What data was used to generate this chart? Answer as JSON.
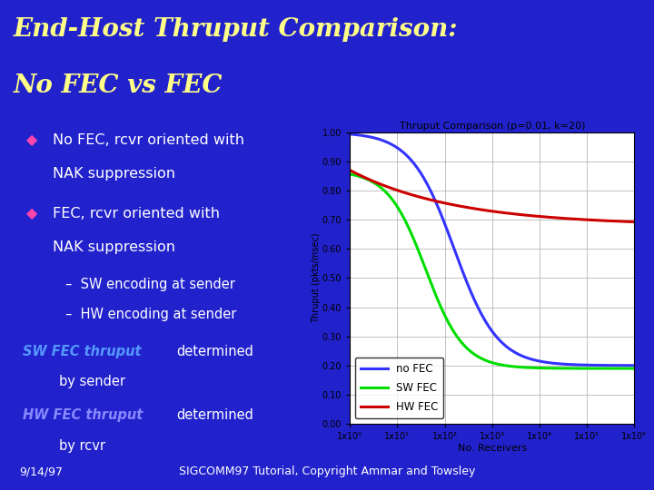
{
  "title_line1": "End-Host Thruput Comparison:",
  "title_line2": "No FEC vs FEC",
  "title_color": "#FFFF88",
  "bg_color": "#2222CC",
  "separator_color": "#FF44AA",
  "bullet_color": "#FF44AA",
  "sw_text_color": "#5599FF",
  "hw_text_color": "#8888FF",
  "white_text": "#FFFFFF",
  "footer_left": "9/14/97",
  "footer_center": "SIGCOMM97 Tutorial, Copyright Ammar and Towsley",
  "chart_title": "Thruput Comparison (p=0.01, k=20)",
  "chart_xlabel": "No. Receivers",
  "chart_ylabel": "Thruput (pkts/msec)",
  "chart_ytick_labels": [
    "0.00",
    "0.10",
    "0.20",
    "0.30",
    "0.40",
    "0.50",
    "0.60",
    "0.70",
    "0.80",
    "0.90",
    "1.00"
  ],
  "chart_xtick_labels": [
    "1x10⁰",
    "1x10¹",
    "1x10²",
    "1x10³",
    "1x10⁴",
    "1x10⁵",
    "1x10⁶"
  ],
  "no_fec_color": "#3333FF",
  "sw_fec_color": "#00DD00",
  "hw_fec_color": "#CC0000",
  "legend_labels": [
    "no FEC",
    "SW FEC",
    "HW FEC"
  ]
}
